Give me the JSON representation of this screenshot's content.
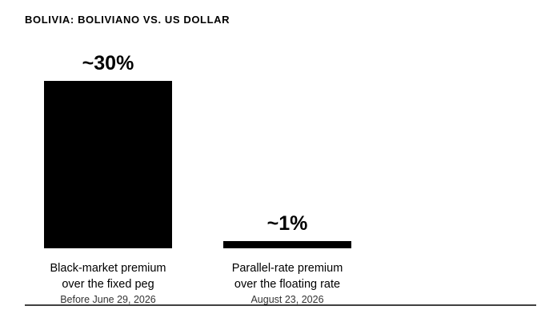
{
  "chart_data": {
    "type": "bar",
    "title": "BOLIVIA: BOLIVIANO VS. US DOLLAR",
    "categories": [
      {
        "line1": "Black-market premium",
        "line2": "over the fixed peg",
        "date": "Before June 29, 2026",
        "value_label": "~30%"
      },
      {
        "line1": "Parallel-rate premium",
        "line2": "over the floating rate",
        "date": "August 23, 2026",
        "value_label": "~1%"
      }
    ],
    "values": [
      30,
      1
    ],
    "unit": "%",
    "ylim": [
      0,
      30
    ],
    "grid": false,
    "legend": "none",
    "bar_color": "#000000",
    "baseline_color": "#000000"
  }
}
